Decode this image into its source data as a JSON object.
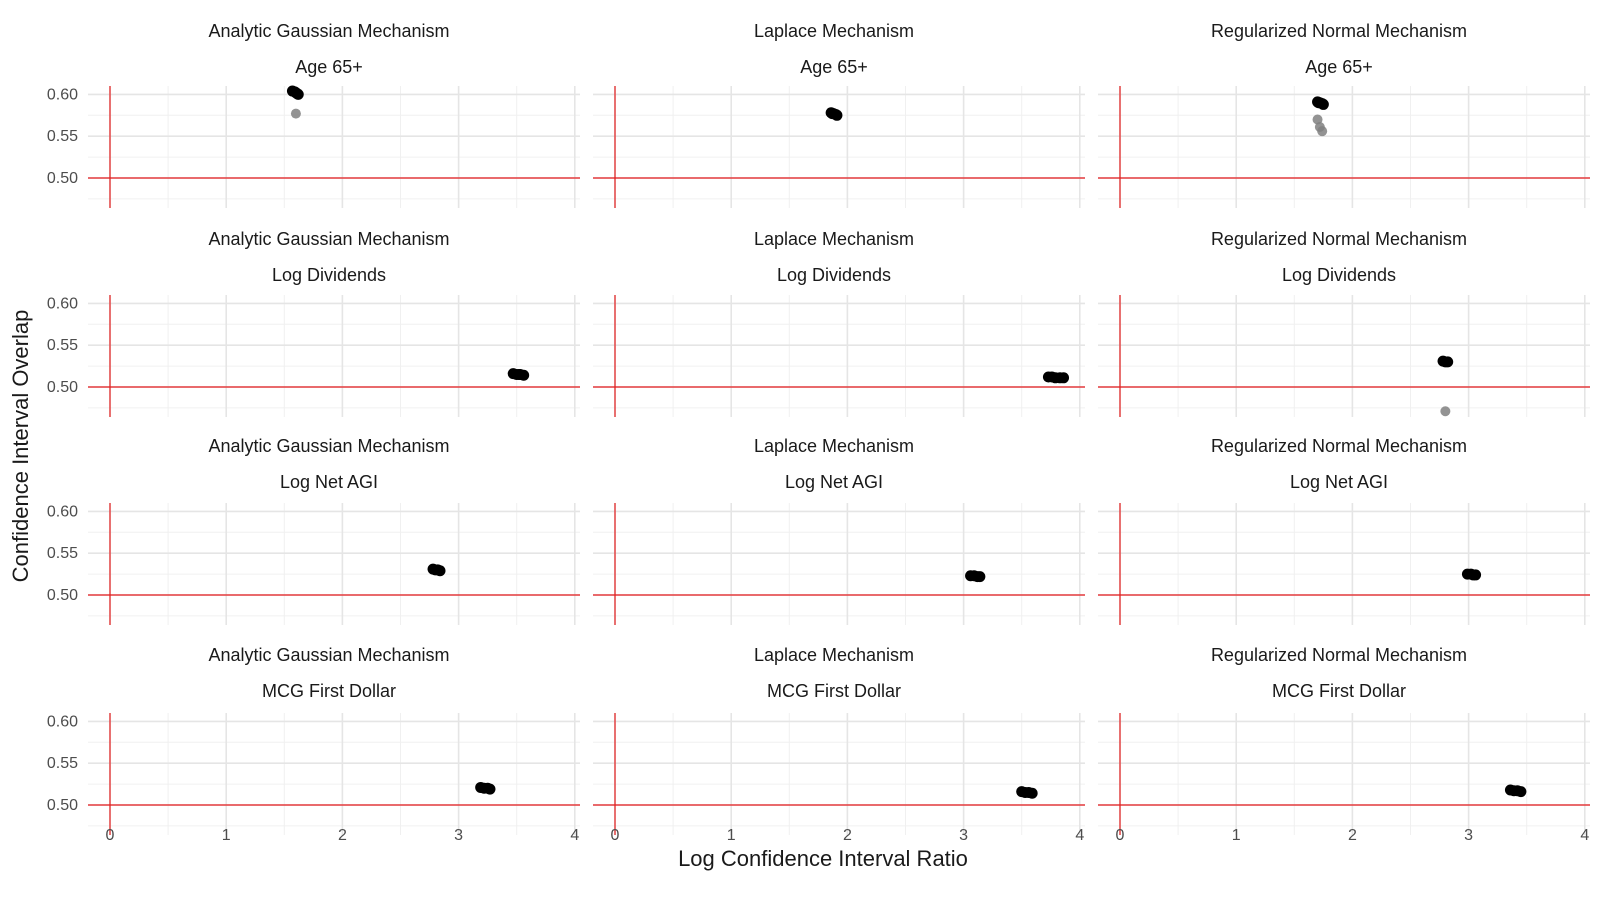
{
  "chart_data": {
    "type": "scatter",
    "xlabel": "Log Confidence Interval Ratio",
    "ylabel": "Confidence Interval Overlap",
    "xlim": [
      -0.2,
      4.05
    ],
    "ylim": [
      0.465,
      0.61
    ],
    "x_ticks": [
      0,
      1,
      2,
      3,
      4
    ],
    "x_tick_labels": [
      "0",
      "1",
      "2",
      "3",
      "4"
    ],
    "y_ticks": [
      0.5,
      0.55,
      0.6
    ],
    "y_tick_labels": [
      "0.50",
      "0.55",
      "0.60"
    ],
    "reference_lines": {
      "x": 0,
      "y": 0.5,
      "color": "#e41a1c"
    },
    "columns": [
      "Analytic Gaussian Mechanism",
      "Laplace Mechanism",
      "Regularized Normal Mechanism"
    ],
    "rows": [
      "Age 65+",
      "Log Dividends",
      "Log Net AGI",
      "MCG First Dollar"
    ],
    "panels": [
      {
        "column": "Analytic Gaussian Mechanism",
        "row": "Age 65+",
        "points": [
          [
            1.57,
            0.604
          ],
          [
            1.59,
            0.603
          ],
          [
            1.61,
            0.601
          ],
          [
            1.62,
            0.6
          ],
          [
            1.6,
            0.602
          ]
        ],
        "outliers": [
          [
            1.6,
            0.577
          ]
        ]
      },
      {
        "column": "Laplace Mechanism",
        "row": "Age 65+",
        "points": [
          [
            1.86,
            0.578
          ],
          [
            1.88,
            0.577
          ],
          [
            1.9,
            0.576
          ],
          [
            1.91,
            0.575
          ],
          [
            1.87,
            0.577
          ]
        ],
        "outliers": []
      },
      {
        "column": "Regularized Normal Mechanism",
        "row": "Age 65+",
        "points": [
          [
            1.7,
            0.591
          ],
          [
            1.72,
            0.59
          ],
          [
            1.74,
            0.589
          ],
          [
            1.75,
            0.588
          ],
          [
            1.71,
            0.59
          ]
        ],
        "outliers": [
          [
            1.7,
            0.57
          ],
          [
            1.72,
            0.561
          ],
          [
            1.74,
            0.556
          ]
        ]
      },
      {
        "column": "Analytic Gaussian Mechanism",
        "row": "Log Dividends",
        "points": [
          [
            3.47,
            0.516
          ],
          [
            3.5,
            0.515
          ],
          [
            3.53,
            0.515
          ],
          [
            3.56,
            0.514
          ],
          [
            3.52,
            0.515
          ]
        ],
        "outliers": []
      },
      {
        "column": "Laplace Mechanism",
        "row": "Log Dividends",
        "points": [
          [
            3.73,
            0.512
          ],
          [
            3.76,
            0.512
          ],
          [
            3.79,
            0.511
          ],
          [
            3.83,
            0.511
          ],
          [
            3.86,
            0.511
          ]
        ],
        "outliers": []
      },
      {
        "column": "Regularized Normal Mechanism",
        "row": "Log Dividends",
        "points": [
          [
            2.78,
            0.531
          ],
          [
            2.8,
            0.53
          ],
          [
            2.82,
            0.53
          ]
        ],
        "outliers": [
          [
            2.8,
            0.471
          ]
        ]
      },
      {
        "column": "Analytic Gaussian Mechanism",
        "row": "Log Net AGI",
        "points": [
          [
            2.78,
            0.531
          ],
          [
            2.8,
            0.53
          ],
          [
            2.82,
            0.53
          ],
          [
            2.84,
            0.529
          ]
        ],
        "outliers": []
      },
      {
        "column": "Laplace Mechanism",
        "row": "Log Net AGI",
        "points": [
          [
            3.06,
            0.523
          ],
          [
            3.09,
            0.523
          ],
          [
            3.12,
            0.522
          ],
          [
            3.14,
            0.522
          ]
        ],
        "outliers": []
      },
      {
        "column": "Regularized Normal Mechanism",
        "row": "Log Net AGI",
        "points": [
          [
            2.99,
            0.525
          ],
          [
            3.02,
            0.525
          ],
          [
            3.04,
            0.524
          ],
          [
            3.06,
            0.524
          ]
        ],
        "outliers": []
      },
      {
        "column": "Analytic Gaussian Mechanism",
        "row": "MCG First Dollar",
        "points": [
          [
            3.19,
            0.521
          ],
          [
            3.22,
            0.52
          ],
          [
            3.25,
            0.52
          ],
          [
            3.27,
            0.519
          ]
        ],
        "outliers": []
      },
      {
        "column": "Laplace Mechanism",
        "row": "MCG First Dollar",
        "points": [
          [
            3.5,
            0.516
          ],
          [
            3.53,
            0.515
          ],
          [
            3.56,
            0.515
          ],
          [
            3.59,
            0.514
          ]
        ],
        "outliers": []
      },
      {
        "column": "Regularized Normal Mechanism",
        "row": "MCG First Dollar",
        "points": [
          [
            3.36,
            0.518
          ],
          [
            3.39,
            0.517
          ],
          [
            3.42,
            0.517
          ],
          [
            3.45,
            0.516
          ]
        ],
        "outliers": []
      }
    ]
  }
}
